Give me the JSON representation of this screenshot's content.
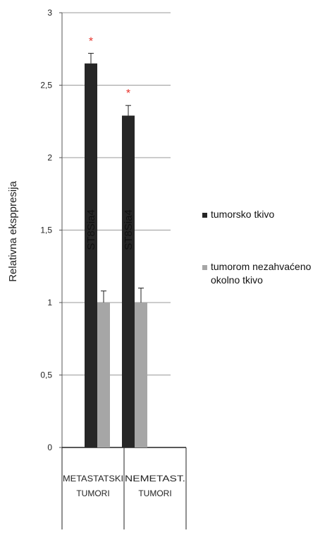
{
  "chart_data": {
    "type": "bar",
    "title": "",
    "ylabel": "Relativna eksppresija",
    "xlabel": "",
    "ylim": [
      0,
      3
    ],
    "y_ticks": [
      {
        "value": 0,
        "label": "0"
      },
      {
        "value": 0.5,
        "label": "0,5"
      },
      {
        "value": 1,
        "label": "1"
      },
      {
        "value": 1.5,
        "label": "1,5"
      },
      {
        "value": 2,
        "label": "2"
      },
      {
        "value": 2.5,
        "label": "2,5"
      },
      {
        "value": 3,
        "label": "3"
      }
    ],
    "grid": true,
    "legend_position": "right",
    "categories": [
      {
        "line1": "METASTATSKI",
        "line2": "TUMORI"
      },
      {
        "line1": "NEMETAST.",
        "line2": "TUMORI"
      }
    ],
    "group_label": "ST8Sia4",
    "series": [
      {
        "name": "tumorsko tkivo",
        "legend_lines": [
          "tumorsko tkivo"
        ],
        "color": "#262626",
        "values": [
          2.65,
          2.29
        ],
        "errors": [
          0.07,
          0.07
        ],
        "annotations": [
          "*",
          "*"
        ]
      },
      {
        "name": "tumorom nezahvaćeno okolno tkivo",
        "legend_lines": [
          "tumorom nezahvaćeno",
          "okolno tkivo"
        ],
        "color": "#a6a6a6",
        "values": [
          1.0,
          1.0
        ],
        "errors": [
          0.08,
          0.1
        ],
        "annotations": [
          "",
          ""
        ]
      }
    ],
    "annotation_color": "#e8312a"
  }
}
